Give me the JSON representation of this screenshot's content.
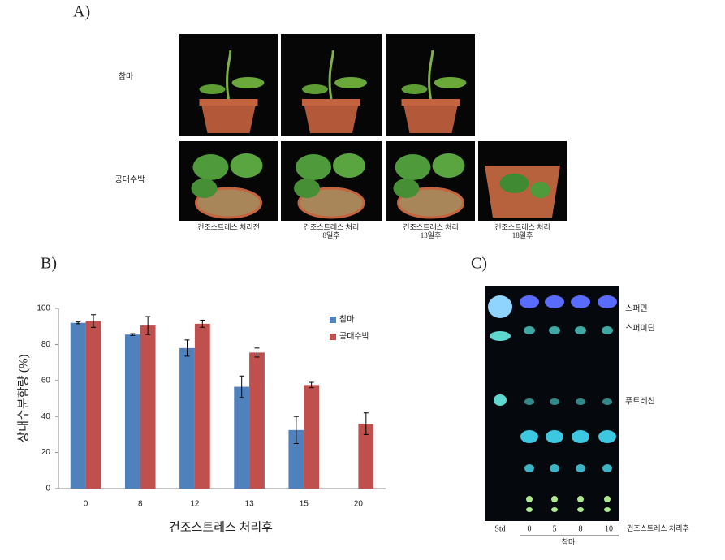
{
  "panel_labels": [
    "A)",
    "B)",
    "C)"
  ],
  "panel_a": {
    "row_labels": [
      "참마",
      "공대수박"
    ],
    "captions": [
      [
        "건조스트레스 처리전"
      ],
      [
        "건조스트레스 처리",
        "8일후"
      ],
      [
        "건조스트레스 처리",
        "13일후"
      ],
      [
        "건조스트레스 처리",
        "18일후"
      ]
    ]
  },
  "chart_data": {
    "type": "bar",
    "y_label": "상대수분함량 (%)",
    "x_label": "건조스트레스 처리후",
    "categories": [
      "0",
      "8",
      "12",
      "13",
      "15",
      "20"
    ],
    "series": [
      {
        "name": "참마",
        "color": "#4f81bd",
        "values": [
          92,
          85.5,
          78,
          56.5,
          32.5,
          null
        ],
        "errors": [
          0.5,
          0.5,
          4.5,
          6,
          7.5,
          null
        ]
      },
      {
        "name": "공대수박",
        "color": "#c0504d",
        "values": [
          93,
          90.5,
          91.5,
          75.5,
          57.5,
          36
        ],
        "errors": [
          3.5,
          5,
          2,
          2.5,
          1.5,
          6
        ]
      }
    ],
    "ylim": [
      0,
      100
    ],
    "yticks": [
      0,
      20,
      40,
      60,
      80,
      100
    ],
    "legend": "top-right"
  },
  "panel_c": {
    "band_labels": [
      "스퍼민",
      "스퍼미딘",
      "푸트레신"
    ],
    "lane_labels": [
      "Std",
      "0",
      "5",
      "8",
      "10"
    ],
    "axis_note": "건조스트레스 처리후",
    "group_label": "참마"
  }
}
